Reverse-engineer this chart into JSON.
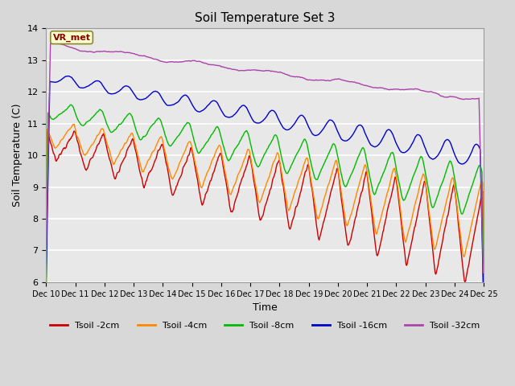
{
  "title": "Soil Temperature Set 3",
  "xlabel": "Time",
  "ylabel": "Soil Temperature (C)",
  "ylim": [
    6.0,
    14.0
  ],
  "yticks": [
    6.0,
    7.0,
    8.0,
    9.0,
    10.0,
    11.0,
    12.0,
    13.0,
    14.0
  ],
  "background_color": "#d8d8d8",
  "plot_bg_color": "#e8e8e8",
  "series": {
    "Tsoil -2cm": {
      "color": "#cc0000",
      "lw": 1.0
    },
    "Tsoil -4cm": {
      "color": "#ff8800",
      "lw": 1.0
    },
    "Tsoil -8cm": {
      "color": "#00bb00",
      "lw": 1.0
    },
    "Tsoil -16cm": {
      "color": "#0000cc",
      "lw": 1.0
    },
    "Tsoil -32cm": {
      "color": "#aa44aa",
      "lw": 1.0
    }
  },
  "vr_met_label": "VR_met",
  "n_days": 15,
  "start_day": 10,
  "points_per_day": 48
}
